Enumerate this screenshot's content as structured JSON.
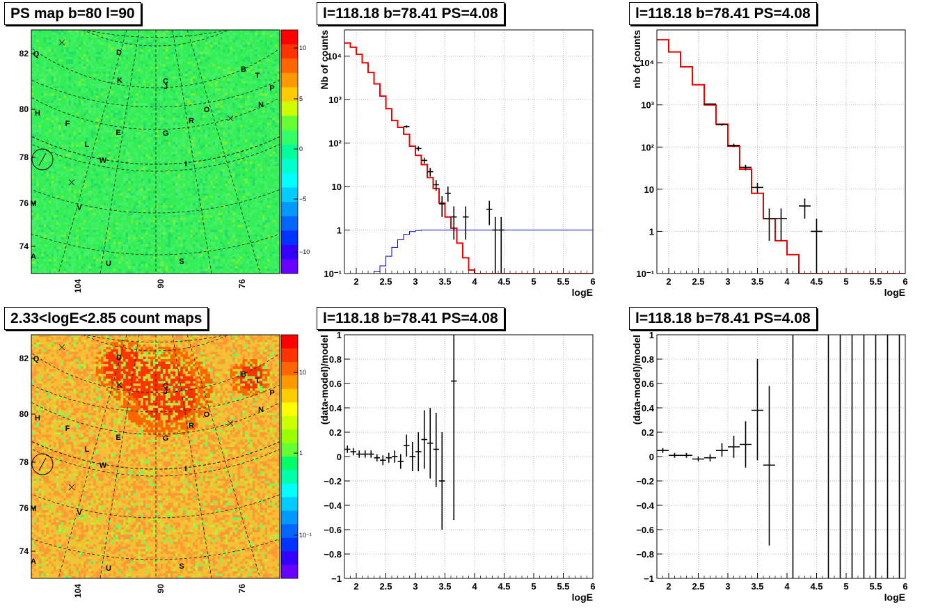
{
  "panels": {
    "ps_map": {
      "title": "PS map b=80 l=90",
      "y_ticks": [
        "82",
        "80",
        "78",
        "76",
        "74"
      ],
      "x_ticks": [
        "104",
        "90",
        "76"
      ],
      "colorbar_ticks": [
        "10",
        "5",
        "0",
        "−5",
        "−10"
      ],
      "colorbar_colors": [
        "#ff0000",
        "#ff3300",
        "#ff6600",
        "#ff9900",
        "#ffcc00",
        "#ccff00",
        "#66ff33",
        "#33ff66",
        "#00ff99",
        "#00ffcc",
        "#00ffff",
        "#00ccff",
        "#0099ff",
        "#0066ff",
        "#0033ff",
        "#3300ff",
        "#6600ff"
      ]
    },
    "count_map": {
      "title": "2.33<logE<2.85 count maps",
      "y_ticks": [
        "82",
        "80",
        "78",
        "76",
        "74"
      ],
      "x_ticks": [
        "104",
        "90",
        "76"
      ],
      "colorbar_ticks": [
        "10",
        "1",
        "10⁻¹"
      ],
      "colorbar_colors": [
        "#ff0000",
        "#ff3300",
        "#ff6600",
        "#ff9900",
        "#ffcc00",
        "#ffff00",
        "#ccff00",
        "#99ff00",
        "#66ff33",
        "#00ff66",
        "#00ffaa",
        "#00ffff",
        "#00ccff",
        "#0099ff",
        "#0066ff",
        "#0033ff",
        "#3300ff",
        "#6600ff"
      ]
    },
    "map_labels": [
      "Q",
      "D",
      "B",
      "T",
      "P",
      "K",
      "C",
      "J",
      "N",
      "H",
      "O",
      "R",
      "F",
      "E",
      "G",
      "L",
      "W",
      "I",
      "M",
      "V",
      "A",
      "U",
      "S"
    ],
    "spectrum_left": {
      "title": "l=118.18 b=78.41 PS=4.08",
      "xlabel": "logE",
      "ylabel": "Nb of counts"
    },
    "spectrum_right": {
      "title": "l=118.18 b=78.41 PS=4.08",
      "xlabel": "logE",
      "ylabel": "nb of counts"
    },
    "residual_left": {
      "title": "l=118.18 b=78.41 PS=4.08",
      "xlabel": "logE",
      "ylabel": "(data-model)/model"
    },
    "residual_right": {
      "title": "l=118.18 b=78.41 PS=4.08",
      "xlabel": "logE",
      "ylabel": "(data-model)/model"
    }
  },
  "chart_data": [
    {
      "type": "line",
      "panel": "spectrum_left",
      "log_y": true,
      "xlim": [
        1.8,
        6
      ],
      "ylim": [
        0.1,
        40000
      ],
      "x_ticks": [
        2,
        2.5,
        3,
        3.5,
        4,
        4.5,
        5,
        5.5,
        6
      ],
      "x_tick_labels": [
        "2",
        "2.5",
        "3",
        "3.5",
        "4",
        "4.5",
        "5",
        "5.5",
        "6"
      ],
      "y_ticks": [
        0.1,
        1,
        10,
        100,
        1000,
        10000
      ],
      "y_tick_labels": [
        "10⁻¹",
        "1",
        "10",
        "10²",
        "10³",
        "10⁴"
      ],
      "grid": true,
      "model_bins": [
        [
          1.8,
          1.9,
          20000
        ],
        [
          1.9,
          2.0,
          16000
        ],
        [
          2.0,
          2.1,
          11000
        ],
        [
          2.1,
          2.2,
          7000
        ],
        [
          2.2,
          2.3,
          4200
        ],
        [
          2.3,
          2.4,
          2300
        ],
        [
          2.4,
          2.5,
          1200
        ],
        [
          2.5,
          2.6,
          620
        ],
        [
          2.6,
          2.7,
          330
        ],
        [
          2.7,
          2.8,
          230
        ],
        [
          2.8,
          2.9,
          160
        ],
        [
          2.9,
          3.0,
          85
        ],
        [
          3.0,
          3.1,
          52
        ],
        [
          3.1,
          3.2,
          32
        ],
        [
          3.2,
          3.3,
          16
        ],
        [
          3.3,
          3.4,
          9
        ],
        [
          3.4,
          3.5,
          4.2
        ],
        [
          3.5,
          3.6,
          2
        ],
        [
          3.6,
          3.7,
          1.1
        ],
        [
          3.7,
          3.8,
          0.5
        ],
        [
          3.8,
          3.9,
          0.23
        ],
        [
          3.9,
          4.0,
          0.12
        ],
        [
          4.0,
          6.0,
          0.1
        ]
      ],
      "background_bins": [
        [
          2.2,
          2.3,
          0.1
        ],
        [
          2.3,
          2.4,
          0.11
        ],
        [
          2.4,
          2.5,
          0.15
        ],
        [
          2.5,
          2.6,
          0.25
        ],
        [
          2.6,
          2.7,
          0.4
        ],
        [
          2.7,
          2.8,
          0.6
        ],
        [
          2.8,
          2.9,
          0.8
        ],
        [
          2.9,
          3.0,
          0.92
        ],
        [
          3.0,
          3.1,
          0.98
        ],
        [
          3.1,
          6.0,
          1.0
        ]
      ],
      "points": [
        {
          "x": 2.85,
          "y": 240,
          "dx": 0.05,
          "lo": 225,
          "hi": 255
        },
        {
          "x": 3.05,
          "y": 75,
          "dx": 0.05,
          "lo": 66,
          "hi": 84
        },
        {
          "x": 3.15,
          "y": 40,
          "dx": 0.05,
          "lo": 34,
          "hi": 46
        },
        {
          "x": 3.25,
          "y": 22,
          "dx": 0.05,
          "lo": 17,
          "hi": 27
        },
        {
          "x": 3.35,
          "y": 11,
          "dx": 0.05,
          "lo": 8,
          "hi": 14
        },
        {
          "x": 3.45,
          "y": 4,
          "dx": 0.05,
          "lo": 2,
          "hi": 6
        },
        {
          "x": 3.55,
          "y": 7,
          "dx": 0.05,
          "lo": 4.5,
          "hi": 10
        },
        {
          "x": 3.65,
          "y": 2,
          "dx": 0.05,
          "lo": 0.6,
          "hi": 3.5
        },
        {
          "x": 3.85,
          "y": 2,
          "dx": 0.05,
          "lo": 0.6,
          "hi": 3.5
        },
        {
          "x": 4.25,
          "y": 3,
          "dx": 0.05,
          "lo": 1.3,
          "hi": 4.7
        },
        {
          "x": 4.35,
          "y": 1,
          "dx": 0.05,
          "lo": 0.1,
          "hi": 2
        },
        {
          "x": 4.45,
          "y": 1,
          "dx": 0.05,
          "lo": 0.1,
          "hi": 2
        }
      ],
      "xlabel": "logE",
      "ylabel": "Nb of counts"
    },
    {
      "type": "line",
      "panel": "spectrum_right",
      "log_y": true,
      "xlim": [
        1.8,
        6
      ],
      "ylim": [
        0.1,
        60000
      ],
      "x_ticks": [
        2,
        2.5,
        3,
        3.5,
        4,
        4.5,
        5,
        5.5,
        6
      ],
      "x_tick_labels": [
        "2",
        "2.5",
        "3",
        "3.5",
        "4",
        "4.5",
        "5",
        "5.5",
        "6"
      ],
      "y_ticks": [
        0.1,
        1,
        10,
        100,
        1000,
        10000
      ],
      "y_tick_labels": [
        "10⁻¹",
        "1",
        "10",
        "10²",
        "10³",
        "10⁴"
      ],
      "grid": true,
      "model_bins": [
        [
          1.8,
          2.0,
          35000
        ],
        [
          2.0,
          2.2,
          18000
        ],
        [
          2.2,
          2.4,
          8000
        ],
        [
          2.4,
          2.6,
          3000
        ],
        [
          2.6,
          2.8,
          1000
        ],
        [
          2.8,
          3.0,
          350
        ],
        [
          3.0,
          3.2,
          105
        ],
        [
          3.2,
          3.4,
          30
        ],
        [
          3.4,
          3.6,
          8
        ],
        [
          3.6,
          3.8,
          2
        ],
        [
          3.8,
          4.0,
          0.6
        ],
        [
          4.0,
          4.2,
          0.28
        ],
        [
          4.2,
          6.0,
          0.1
        ]
      ],
      "points": [
        {
          "x": 2.7,
          "y": 1050,
          "dx": 0.1,
          "lo": 1010,
          "hi": 1090
        },
        {
          "x": 2.9,
          "y": 340,
          "dx": 0.1,
          "lo": 320,
          "hi": 360
        },
        {
          "x": 3.1,
          "y": 110,
          "dx": 0.1,
          "lo": 100,
          "hi": 120
        },
        {
          "x": 3.3,
          "y": 33,
          "dx": 0.1,
          "lo": 28,
          "hi": 38
        },
        {
          "x": 3.5,
          "y": 11,
          "dx": 0.1,
          "lo": 8,
          "hi": 14
        },
        {
          "x": 3.7,
          "y": 2,
          "dx": 0.1,
          "lo": 0.6,
          "hi": 3.5
        },
        {
          "x": 3.9,
          "y": 2,
          "dx": 0.1,
          "lo": 0.6,
          "hi": 3.5
        },
        {
          "x": 4.3,
          "y": 4,
          "dx": 0.1,
          "lo": 2,
          "hi": 6
        },
        {
          "x": 4.5,
          "y": 1,
          "dx": 0.1,
          "lo": 0.1,
          "hi": 2
        }
      ],
      "xlabel": "logE",
      "ylabel": "nb of counts"
    },
    {
      "type": "scatter",
      "panel": "residual_left",
      "xlim": [
        1.8,
        6
      ],
      "ylim": [
        -1,
        1
      ],
      "x_ticks": [
        2,
        2.5,
        3,
        3.5,
        4,
        4.5,
        5,
        5.5,
        6
      ],
      "x_tick_labels": [
        "2",
        "2.5",
        "3",
        "3.5",
        "4",
        "4.5",
        "5",
        "5.5",
        "6"
      ],
      "y_ticks": [
        -1,
        -0.8,
        -0.6,
        -0.4,
        -0.2,
        0,
        0.2,
        0.4,
        0.6,
        0.8,
        1
      ],
      "y_tick_labels": [
        "−1",
        "−0.8",
        "−0.6",
        "−0.4",
        "−0.2",
        "0",
        "0.2",
        "0.4",
        "0.6",
        "0.8",
        "1"
      ],
      "grid": true,
      "points": [
        {
          "x": 1.85,
          "y": 0.06,
          "dx": 0.05,
          "lo": 0.03,
          "hi": 0.09
        },
        {
          "x": 1.95,
          "y": 0.04,
          "dx": 0.05,
          "lo": 0.01,
          "hi": 0.07
        },
        {
          "x": 2.05,
          "y": 0.02,
          "dx": 0.05,
          "lo": -0.01,
          "hi": 0.05
        },
        {
          "x": 2.15,
          "y": 0.02,
          "dx": 0.05,
          "lo": -0.01,
          "hi": 0.05
        },
        {
          "x": 2.25,
          "y": 0.02,
          "dx": 0.05,
          "lo": -0.01,
          "hi": 0.05
        },
        {
          "x": 2.35,
          "y": -0.01,
          "dx": 0.05,
          "lo": -0.04,
          "hi": 0.02
        },
        {
          "x": 2.45,
          "y": -0.03,
          "dx": 0.05,
          "lo": -0.07,
          "hi": 0.01
        },
        {
          "x": 2.55,
          "y": -0.01,
          "dx": 0.05,
          "lo": -0.05,
          "hi": 0.03
        },
        {
          "x": 2.65,
          "y": 0.0,
          "dx": 0.05,
          "lo": -0.05,
          "hi": 0.05
        },
        {
          "x": 2.75,
          "y": -0.04,
          "dx": 0.05,
          "lo": -0.1,
          "hi": 0.02
        },
        {
          "x": 2.85,
          "y": 0.09,
          "dx": 0.05,
          "lo": 0.0,
          "hi": 0.18
        },
        {
          "x": 2.95,
          "y": 0.0,
          "dx": 0.05,
          "lo": -0.12,
          "hi": 0.12
        },
        {
          "x": 3.05,
          "y": 0.04,
          "dx": 0.05,
          "lo": -0.12,
          "hi": 0.2
        },
        {
          "x": 3.15,
          "y": 0.14,
          "dx": 0.05,
          "lo": -0.1,
          "hi": 0.38
        },
        {
          "x": 3.25,
          "y": 0.11,
          "dx": 0.05,
          "lo": -0.18,
          "hi": 0.4
        },
        {
          "x": 3.35,
          "y": 0.06,
          "dx": 0.05,
          "lo": -0.25,
          "hi": 0.36
        },
        {
          "x": 3.45,
          "y": -0.2,
          "dx": 0.05,
          "lo": -0.6,
          "hi": 0.2
        },
        {
          "x": 3.65,
          "y": 0.62,
          "dx": 0.05,
          "lo": -0.52,
          "hi": 1.0
        }
      ],
      "xlabel": "logE",
      "ylabel": "(data-model)/model"
    },
    {
      "type": "scatter",
      "panel": "residual_right",
      "xlim": [
        1.8,
        6
      ],
      "ylim": [
        -1,
        1
      ],
      "x_ticks": [
        2,
        2.5,
        3,
        3.5,
        4,
        4.5,
        5,
        5.5,
        6
      ],
      "x_tick_labels": [
        "2",
        "2.5",
        "3",
        "3.5",
        "4",
        "4.5",
        "5",
        "5.5",
        "6"
      ],
      "y_ticks": [
        -1,
        -0.8,
        -0.6,
        -0.4,
        -0.2,
        0,
        0.2,
        0.4,
        0.6,
        0.8,
        1
      ],
      "y_tick_labels": [
        "−1",
        "−0.8",
        "−0.6",
        "−0.4",
        "−0.2",
        "0",
        "0.2",
        "0.4",
        "0.6",
        "0.8",
        "1"
      ],
      "grid": true,
      "points": [
        {
          "x": 1.9,
          "y": 0.05,
          "dx": 0.1,
          "lo": 0.03,
          "hi": 0.07
        },
        {
          "x": 2.1,
          "y": 0.01,
          "dx": 0.1,
          "lo": -0.01,
          "hi": 0.03
        },
        {
          "x": 2.3,
          "y": 0.01,
          "dx": 0.1,
          "lo": -0.01,
          "hi": 0.03
        },
        {
          "x": 2.5,
          "y": -0.02,
          "dx": 0.1,
          "lo": -0.04,
          "hi": 0.0
        },
        {
          "x": 2.7,
          "y": -0.01,
          "dx": 0.1,
          "lo": -0.04,
          "hi": 0.02
        },
        {
          "x": 2.9,
          "y": 0.05,
          "dx": 0.1,
          "lo": 0.0,
          "hi": 0.11
        },
        {
          "x": 3.1,
          "y": 0.08,
          "dx": 0.1,
          "lo": -0.01,
          "hi": 0.17
        },
        {
          "x": 3.3,
          "y": 0.1,
          "dx": 0.1,
          "lo": -0.09,
          "hi": 0.29
        },
        {
          "x": 3.5,
          "y": 0.38,
          "dx": 0.1,
          "lo": -0.03,
          "hi": 0.8
        },
        {
          "x": 3.7,
          "y": -0.07,
          "dx": 0.1,
          "lo": -0.73,
          "hi": 0.58
        },
        {
          "x": 4.1,
          "y": 0,
          "dx": 0,
          "lo": -1,
          "hi": 1
        },
        {
          "x": 4.7,
          "y": 0,
          "dx": 0,
          "lo": -1,
          "hi": 1
        },
        {
          "x": 4.9,
          "y": 0,
          "dx": 0,
          "lo": -1,
          "hi": 1
        },
        {
          "x": 5.1,
          "y": 0,
          "dx": 0,
          "lo": -1,
          "hi": 1
        },
        {
          "x": 5.3,
          "y": 0,
          "dx": 0,
          "lo": -1,
          "hi": 1
        },
        {
          "x": 5.5,
          "y": 0,
          "dx": 0,
          "lo": -1,
          "hi": 1
        },
        {
          "x": 5.7,
          "y": 0,
          "dx": 0,
          "lo": -1,
          "hi": 1
        },
        {
          "x": 5.9,
          "y": 0,
          "dx": 0,
          "lo": -1,
          "hi": 1
        }
      ],
      "xlabel": "logE",
      "ylabel": "(data-model)/model"
    }
  ]
}
